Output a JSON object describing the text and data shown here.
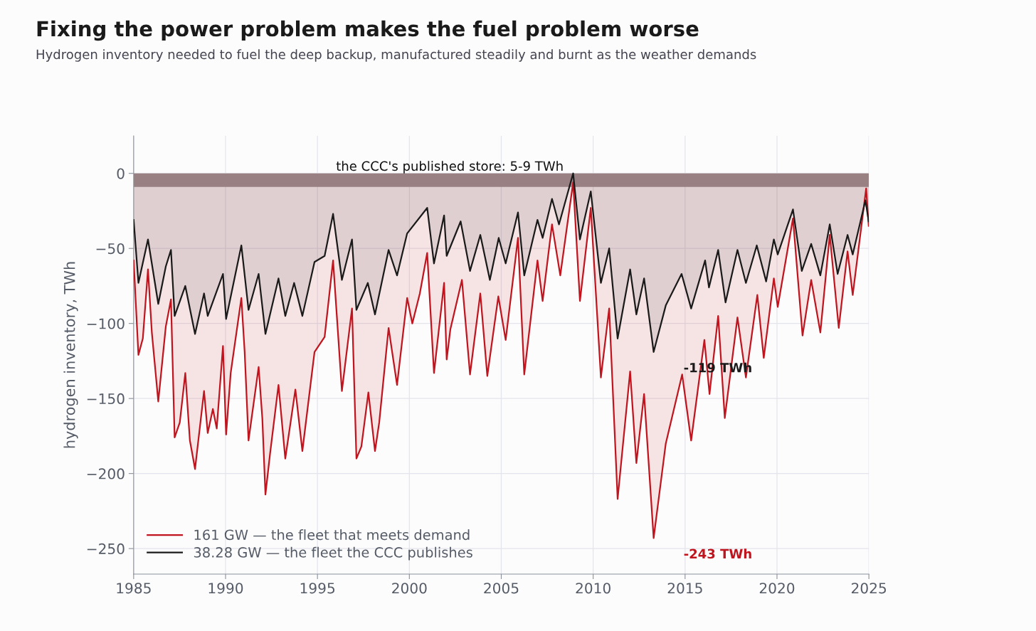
{
  "chart_data": {
    "type": "area",
    "title": "Fixing the power problem makes the fuel problem worse",
    "subtitle": "Hydrogen inventory needed to fuel the deep backup, manufactured steadily and burnt as the weather demands",
    "ylabel": "hydrogen inventory, TWh",
    "xlim": [
      1985,
      2025
    ],
    "xticks": [
      1985,
      1990,
      1995,
      2000,
      2005,
      2010,
      2015,
      2020,
      2025
    ],
    "ylim": [
      -267,
      25
    ],
    "yticks": [
      {
        "value": 0,
        "label": "0"
      },
      {
        "value": -50,
        "label": "−50"
      },
      {
        "value": -100,
        "label": "−100"
      },
      {
        "value": -150,
        "label": "−150"
      },
      {
        "value": -200,
        "label": "−200"
      },
      {
        "value": -250,
        "label": "−250"
      }
    ],
    "grid": true,
    "legend": "bottom left",
    "bands": [
      {
        "axis": "y",
        "from": -9,
        "to": 0,
        "label": "the CCC's published store: 5-9 TWh",
        "color": "#a39a9c"
      }
    ],
    "annotations": [
      {
        "text": "-119 TWh",
        "x": 2013.29,
        "y": -119
      },
      {
        "text": "-243 TWh",
        "x": 2013.29,
        "y": -243
      }
    ],
    "series": [
      {
        "name": "161 GW — the fleet that meets demand",
        "color": "#c0141e",
        "x": [
          1985.0,
          1985.26,
          1985.5,
          1985.78,
          1985.99,
          1986.34,
          1986.75,
          1987.03,
          1987.23,
          1987.51,
          1987.81,
          1988.06,
          1988.34,
          1988.83,
          1989.03,
          1989.31,
          1989.52,
          1989.86,
          1990.03,
          1990.28,
          1990.86,
          1991.04,
          1991.25,
          1991.8,
          1992.0,
          1992.17,
          1992.42,
          1992.88,
          1993.25,
          1993.8,
          1994.18,
          1994.84,
          1995.39,
          1995.85,
          1996.33,
          1996.88,
          1997.12,
          1997.39,
          1997.77,
          1998.13,
          1998.36,
          1998.87,
          1999.33,
          1999.88,
          2000.16,
          2000.57,
          2000.97,
          2001.34,
          2001.89,
          2002.03,
          2002.23,
          2002.86,
          2003.3,
          2003.86,
          2004.24,
          2004.84,
          2005.24,
          2005.91,
          2006.25,
          2006.97,
          2007.25,
          2007.76,
          2008.21,
          2008.91,
          2009.28,
          2009.87,
          2010.42,
          2010.87,
          2011.33,
          2012.01,
          2012.35,
          2012.77,
          2013.29,
          2013.95,
          2014.84,
          2015.33,
          2016.05,
          2016.33,
          2016.8,
          2017.16,
          2017.85,
          2018.31,
          2018.93,
          2019.28,
          2019.83,
          2020.04,
          2020.87,
          2021.39,
          2021.86,
          2022.36,
          2022.87,
          2023.36,
          2023.84,
          2024.12,
          2024.85,
          2024.99
        ],
        "values": [
          -58,
          -121,
          -110,
          -64,
          -106,
          -152,
          -102,
          -84,
          -176,
          -166,
          -133,
          -178,
          -197,
          -145,
          -173,
          -157,
          -170,
          -115,
          -174,
          -133,
          -83,
          -119,
          -178,
          -129,
          -163,
          -214,
          -187,
          -141,
          -190,
          -144,
          -185,
          -119,
          -109,
          -58,
          -145,
          -90,
          -190,
          -182,
          -146,
          -185,
          -166,
          -103,
          -141,
          -83,
          -100,
          -80,
          -53,
          -133,
          -73,
          -124,
          -104,
          -71,
          -134,
          -80,
          -135,
          -82,
          -111,
          -43,
          -134,
          -58,
          -85,
          -34,
          -68,
          -6,
          -85,
          -23,
          -136,
          -90,
          -217,
          -132,
          -193,
          -147,
          -243,
          -180,
          -134,
          -178,
          -111,
          -147,
          -95,
          -163,
          -96,
          -136,
          -81,
          -123,
          -70,
          -89,
          -30,
          -108,
          -71,
          -106,
          -41,
          -103,
          -52,
          -81,
          -10,
          -35
        ]
      },
      {
        "name": "38.28 GW — the fleet the CCC publishes",
        "color": "#1a1a1a",
        "x": [
          1985.0,
          1985.26,
          1985.78,
          1986.34,
          1986.75,
          1987.03,
          1987.23,
          1987.81,
          1988.34,
          1988.83,
          1989.03,
          1989.86,
          1990.03,
          1990.86,
          1991.25,
          1991.8,
          1992.17,
          1992.88,
          1993.25,
          1993.73,
          1994.18,
          1994.84,
          1995.39,
          1995.85,
          1996.33,
          1996.88,
          1997.12,
          1997.74,
          1998.13,
          1998.87,
          1999.33,
          1999.88,
          2000.97,
          2001.34,
          2001.89,
          2002.03,
          2002.79,
          2003.3,
          2003.86,
          2004.38,
          2004.86,
          2005.24,
          2005.91,
          2006.25,
          2006.97,
          2007.25,
          2007.76,
          2008.14,
          2008.91,
          2009.28,
          2009.87,
          2010.42,
          2010.87,
          2011.33,
          2012.01,
          2012.35,
          2012.77,
          2013.29,
          2013.95,
          2014.81,
          2015.33,
          2016.09,
          2016.3,
          2016.8,
          2017.2,
          2017.85,
          2018.31,
          2018.9,
          2019.41,
          2019.83,
          2020.04,
          2020.87,
          2021.35,
          2021.86,
          2022.36,
          2022.87,
          2023.3,
          2023.84,
          2024.12,
          2024.81,
          2024.99
        ],
        "values": [
          -31,
          -73,
          -44,
          -87,
          -62,
          -51,
          -95,
          -75,
          -107,
          -80,
          -95,
          -67,
          -97,
          -48,
          -91,
          -67,
          -107,
          -70,
          -95,
          -73,
          -95,
          -59,
          -55,
          -27,
          -71,
          -44,
          -91,
          -73,
          -94,
          -51,
          -68,
          -40,
          -23,
          -60,
          -28,
          -55,
          -32,
          -65,
          -41,
          -71,
          -43,
          -60,
          -26,
          -68,
          -31,
          -43,
          -17,
          -34,
          0,
          -44,
          -12,
          -73,
          -50,
          -110,
          -64,
          -94,
          -70,
          -119,
          -88,
          -67,
          -90,
          -58,
          -76,
          -51,
          -86,
          -51,
          -73,
          -48,
          -72,
          -44,
          -54,
          -24,
          -65,
          -47,
          -68,
          -34,
          -67,
          -41,
          -54,
          -18,
          -32
        ]
      }
    ]
  }
}
